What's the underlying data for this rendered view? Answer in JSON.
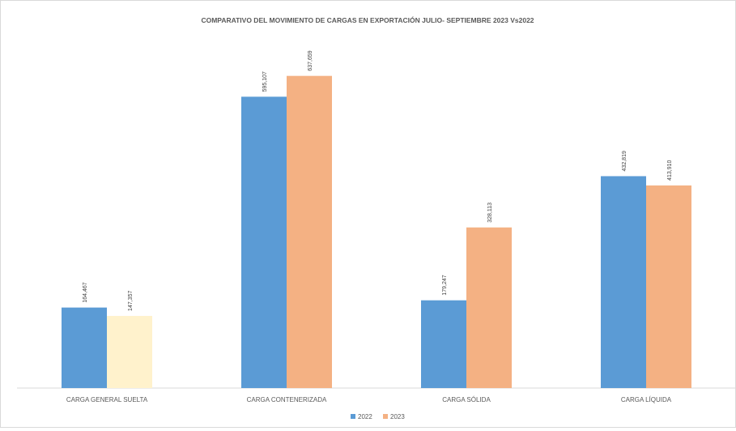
{
  "chart_data": {
    "type": "bar",
    "title": "COMPARATIVO DEL MOVIMIENTO DE CARGAS EN EXPORTACIÓN  JULIO- SEPTIEMBRE 2023 Vs2022",
    "categories": [
      "CARGA GENERAL  SUELTA",
      "CARGA CONTENERIZADA",
      "CARGA SÓLIDA",
      "CARGA LÍQUIDA"
    ],
    "series": [
      {
        "name": "2022",
        "values": [
          164467,
          595107,
          179247,
          432819
        ],
        "labels": [
          "164,467",
          "595,107",
          "179,247",
          "432,819"
        ],
        "color": "#5B9BD5",
        "point_colors": [
          "#5B9BD5",
          "#5B9BD5",
          "#5B9BD5",
          "#5B9BD5"
        ]
      },
      {
        "name": "2023",
        "values": [
          147357,
          637659,
          328113,
          413910
        ],
        "labels": [
          "147,357",
          "637,659",
          "328,113",
          "413,910"
        ],
        "color": "#F4B183",
        "point_colors": [
          "#FFF2CC",
          "#F4B183",
          "#F4B183",
          "#F4B183"
        ]
      }
    ],
    "ylim": [
      0,
      700000
    ],
    "grid": false,
    "legend_position": "bottom",
    "xlabel": "",
    "ylabel": ""
  }
}
